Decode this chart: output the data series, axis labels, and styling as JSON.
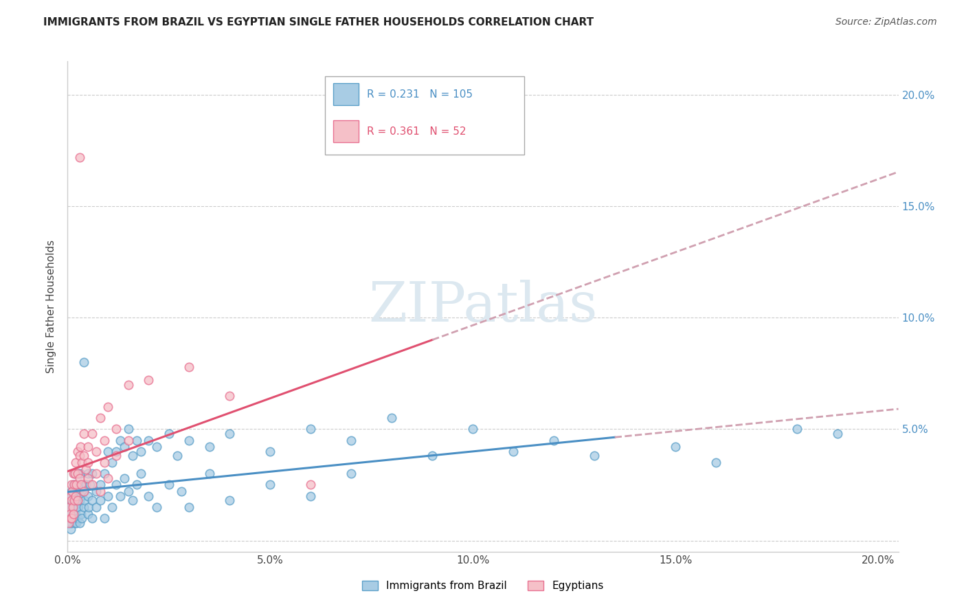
{
  "title": "IMMIGRANTS FROM BRAZIL VS EGYPTIAN SINGLE FATHER HOUSEHOLDS CORRELATION CHART",
  "source": "Source: ZipAtlas.com",
  "ylabel": "Single Father Households",
  "legend_label1": "Immigrants from Brazil",
  "legend_label2": "Egyptians",
  "r1": 0.231,
  "n1": 105,
  "r2": 0.361,
  "n2": 52,
  "xlim": [
    0.0,
    0.205
  ],
  "ylim": [
    -0.005,
    0.215
  ],
  "xticks": [
    0.0,
    0.05,
    0.1,
    0.15,
    0.2
  ],
  "xtick_labels": [
    "0.0%",
    "5.0%",
    "10.0%",
    "15.0%",
    "20.0%"
  ],
  "yticks": [
    0.0,
    0.05,
    0.1,
    0.15,
    0.2
  ],
  "ytick_labels_right": [
    "",
    "5.0%",
    "10.0%",
    "15.0%",
    "20.0%"
  ],
  "color_blue": "#a8cce4",
  "color_pink": "#f5c0c8",
  "color_blue_edge": "#5a9fc8",
  "color_pink_edge": "#e87090",
  "color_blue_line": "#4a8fc4",
  "color_pink_line": "#e05070",
  "color_dashed": "#d0a0b0",
  "watermark_color": "#dce8f0",
  "background_color": "#ffffff",
  "blue_dots": [
    [
      0.0003,
      0.01
    ],
    [
      0.0005,
      0.015
    ],
    [
      0.0006,
      0.008
    ],
    [
      0.0007,
      0.012
    ],
    [
      0.0008,
      0.018
    ],
    [
      0.0008,
      0.005
    ],
    [
      0.0009,
      0.02
    ],
    [
      0.0009,
      0.01
    ],
    [
      0.001,
      0.015
    ],
    [
      0.001,
      0.022
    ],
    [
      0.001,
      0.008
    ],
    [
      0.0012,
      0.018
    ],
    [
      0.0013,
      0.012
    ],
    [
      0.0014,
      0.025
    ],
    [
      0.0015,
      0.01
    ],
    [
      0.0015,
      0.02
    ],
    [
      0.0016,
      0.015
    ],
    [
      0.0017,
      0.022
    ],
    [
      0.0018,
      0.008
    ],
    [
      0.0018,
      0.03
    ],
    [
      0.002,
      0.018
    ],
    [
      0.002,
      0.012
    ],
    [
      0.0022,
      0.025
    ],
    [
      0.0022,
      0.008
    ],
    [
      0.0024,
      0.015
    ],
    [
      0.0025,
      0.02
    ],
    [
      0.0025,
      0.01
    ],
    [
      0.0026,
      0.03
    ],
    [
      0.0027,
      0.015
    ],
    [
      0.0028,
      0.022
    ],
    [
      0.003,
      0.018
    ],
    [
      0.003,
      0.025
    ],
    [
      0.003,
      0.008
    ],
    [
      0.0032,
      0.03
    ],
    [
      0.0033,
      0.012
    ],
    [
      0.0034,
      0.02
    ],
    [
      0.0035,
      0.025
    ],
    [
      0.0035,
      0.01
    ],
    [
      0.004,
      0.08
    ],
    [
      0.004,
      0.022
    ],
    [
      0.004,
      0.015
    ],
    [
      0.0042,
      0.018
    ],
    [
      0.0045,
      0.025
    ],
    [
      0.005,
      0.02
    ],
    [
      0.005,
      0.012
    ],
    [
      0.005,
      0.03
    ],
    [
      0.0052,
      0.015
    ],
    [
      0.0055,
      0.025
    ],
    [
      0.006,
      0.018
    ],
    [
      0.006,
      0.01
    ],
    [
      0.006,
      0.03
    ],
    [
      0.007,
      0.022
    ],
    [
      0.007,
      0.015
    ],
    [
      0.008,
      0.025
    ],
    [
      0.008,
      0.018
    ],
    [
      0.009,
      0.03
    ],
    [
      0.009,
      0.01
    ],
    [
      0.01,
      0.04
    ],
    [
      0.01,
      0.02
    ],
    [
      0.011,
      0.035
    ],
    [
      0.011,
      0.015
    ],
    [
      0.012,
      0.04
    ],
    [
      0.012,
      0.025
    ],
    [
      0.013,
      0.045
    ],
    [
      0.013,
      0.02
    ],
    [
      0.014,
      0.042
    ],
    [
      0.014,
      0.028
    ],
    [
      0.015,
      0.05
    ],
    [
      0.015,
      0.022
    ],
    [
      0.016,
      0.038
    ],
    [
      0.016,
      0.018
    ],
    [
      0.017,
      0.045
    ],
    [
      0.017,
      0.025
    ],
    [
      0.018,
      0.04
    ],
    [
      0.018,
      0.03
    ],
    [
      0.02,
      0.045
    ],
    [
      0.02,
      0.02
    ],
    [
      0.022,
      0.042
    ],
    [
      0.022,
      0.015
    ],
    [
      0.025,
      0.048
    ],
    [
      0.025,
      0.025
    ],
    [
      0.027,
      0.038
    ],
    [
      0.028,
      0.022
    ],
    [
      0.03,
      0.045
    ],
    [
      0.03,
      0.015
    ],
    [
      0.035,
      0.042
    ],
    [
      0.035,
      0.03
    ],
    [
      0.04,
      0.048
    ],
    [
      0.04,
      0.018
    ],
    [
      0.05,
      0.04
    ],
    [
      0.05,
      0.025
    ],
    [
      0.06,
      0.05
    ],
    [
      0.06,
      0.02
    ],
    [
      0.07,
      0.045
    ],
    [
      0.07,
      0.03
    ],
    [
      0.08,
      0.055
    ],
    [
      0.09,
      0.038
    ],
    [
      0.1,
      0.05
    ],
    [
      0.11,
      0.04
    ],
    [
      0.12,
      0.045
    ],
    [
      0.13,
      0.038
    ],
    [
      0.15,
      0.042
    ],
    [
      0.16,
      0.035
    ],
    [
      0.18,
      0.05
    ],
    [
      0.19,
      0.048
    ]
  ],
  "pink_dots": [
    [
      0.0003,
      0.008
    ],
    [
      0.0005,
      0.015
    ],
    [
      0.0006,
      0.012
    ],
    [
      0.0007,
      0.02
    ],
    [
      0.0008,
      0.01
    ],
    [
      0.0009,
      0.018
    ],
    [
      0.001,
      0.025
    ],
    [
      0.001,
      0.01
    ],
    [
      0.0012,
      0.022
    ],
    [
      0.0013,
      0.015
    ],
    [
      0.0014,
      0.03
    ],
    [
      0.0015,
      0.012
    ],
    [
      0.0016,
      0.025
    ],
    [
      0.0017,
      0.018
    ],
    [
      0.0018,
      0.03
    ],
    [
      0.002,
      0.02
    ],
    [
      0.002,
      0.035
    ],
    [
      0.0022,
      0.025
    ],
    [
      0.0024,
      0.03
    ],
    [
      0.0025,
      0.04
    ],
    [
      0.0025,
      0.018
    ],
    [
      0.003,
      0.172
    ],
    [
      0.003,
      0.038
    ],
    [
      0.003,
      0.028
    ],
    [
      0.0032,
      0.042
    ],
    [
      0.0033,
      0.025
    ],
    [
      0.0035,
      0.035
    ],
    [
      0.004,
      0.048
    ],
    [
      0.004,
      0.022
    ],
    [
      0.004,
      0.038
    ],
    [
      0.0045,
      0.032
    ],
    [
      0.005,
      0.042
    ],
    [
      0.005,
      0.028
    ],
    [
      0.005,
      0.035
    ],
    [
      0.006,
      0.048
    ],
    [
      0.006,
      0.025
    ],
    [
      0.007,
      0.04
    ],
    [
      0.007,
      0.03
    ],
    [
      0.008,
      0.055
    ],
    [
      0.008,
      0.022
    ],
    [
      0.009,
      0.045
    ],
    [
      0.009,
      0.035
    ],
    [
      0.01,
      0.06
    ],
    [
      0.01,
      0.028
    ],
    [
      0.012,
      0.05
    ],
    [
      0.012,
      0.038
    ],
    [
      0.015,
      0.07
    ],
    [
      0.015,
      0.045
    ],
    [
      0.02,
      0.072
    ],
    [
      0.03,
      0.078
    ],
    [
      0.04,
      0.065
    ],
    [
      0.06,
      0.025
    ]
  ]
}
